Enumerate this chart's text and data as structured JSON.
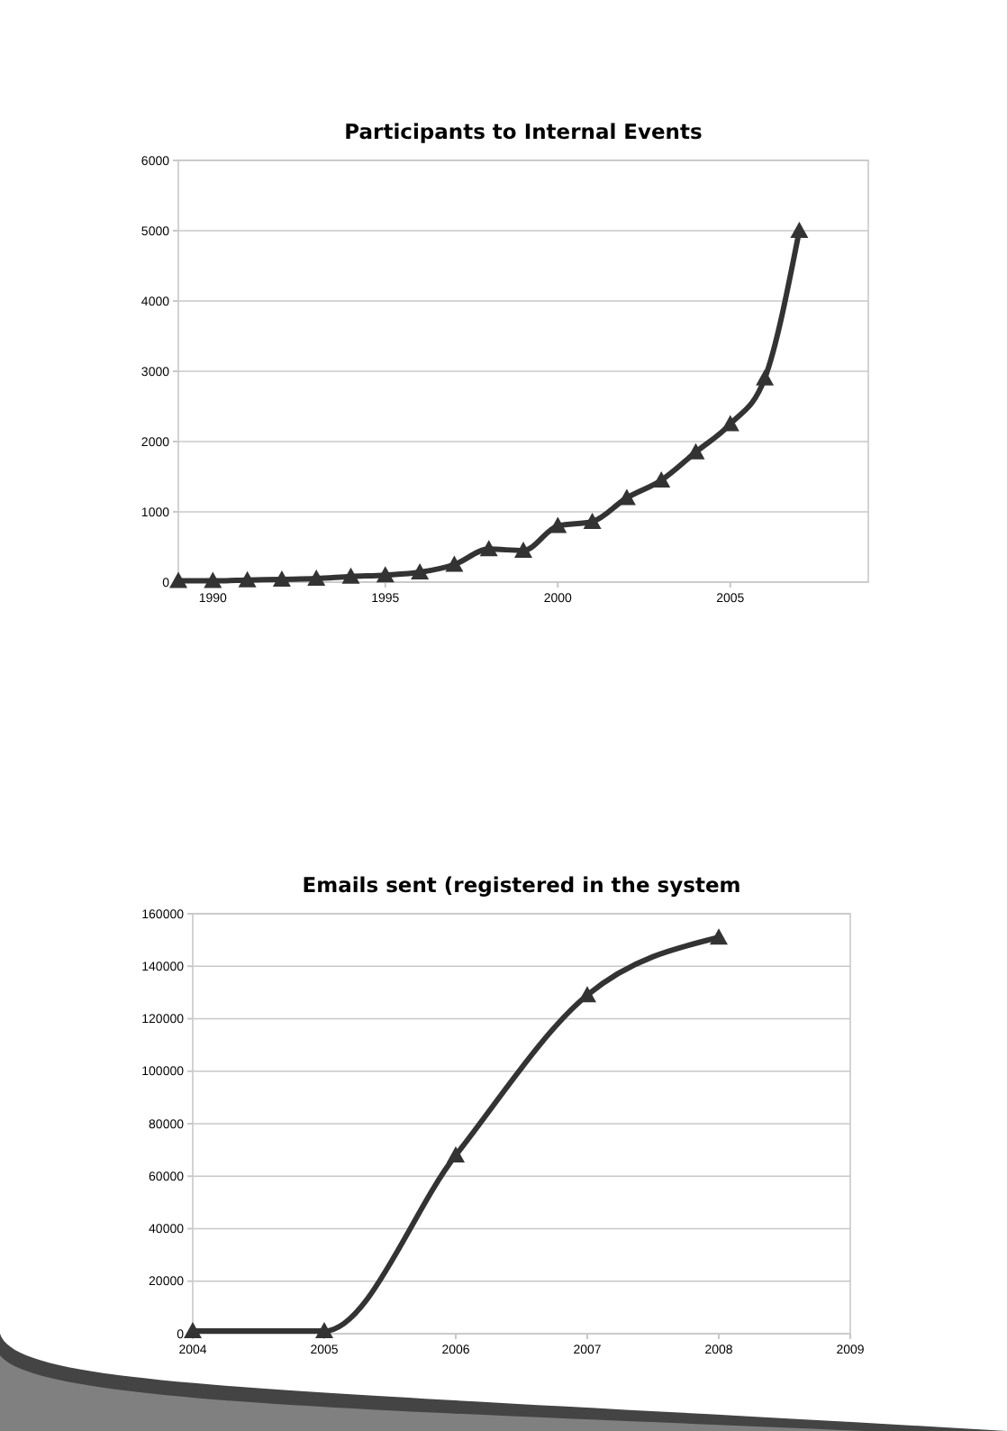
{
  "chart_data": [
    {
      "type": "line",
      "title": "Participants to Internal Events",
      "x": [
        1989,
        1990,
        1991,
        1992,
        1993,
        1994,
        1995,
        1996,
        1997,
        1998,
        1999,
        2000,
        2001,
        2002,
        2003,
        2004,
        2005,
        2006,
        2007
      ],
      "series": [
        {
          "color": "#333333",
          "values": [
            20,
            20,
            30,
            40,
            50,
            80,
            100,
            140,
            250,
            470,
            450,
            800,
            860,
            1200,
            1450,
            1850,
            2250,
            2900,
            5000
          ]
        }
      ],
      "xlim": [
        1989,
        2009
      ],
      "xticks": [
        1990,
        1995,
        2000,
        2005
      ],
      "ylim": [
        0,
        6000
      ],
      "yticks": [
        0,
        1000,
        2000,
        3000,
        4000,
        5000,
        6000
      ],
      "grid": "y",
      "marker": "triangle",
      "line_style": "solid"
    },
    {
      "type": "line",
      "title": "Emails sent (registered in the system",
      "x": [
        2004,
        2005,
        2006,
        2007,
        2008
      ],
      "series": [
        {
          "color": "#333333",
          "values": [
            1000,
            1000,
            68000,
            129000,
            151000
          ]
        }
      ],
      "xlim": [
        2004,
        2009
      ],
      "xticks": [
        2004,
        2005,
        2006,
        2007,
        2008,
        2009
      ],
      "ylim": [
        0,
        160000
      ],
      "yticks": [
        0,
        20000,
        40000,
        60000,
        80000,
        100000,
        120000,
        140000,
        160000
      ],
      "grid": "y",
      "marker": "triangle",
      "line_style": "solid"
    }
  ]
}
